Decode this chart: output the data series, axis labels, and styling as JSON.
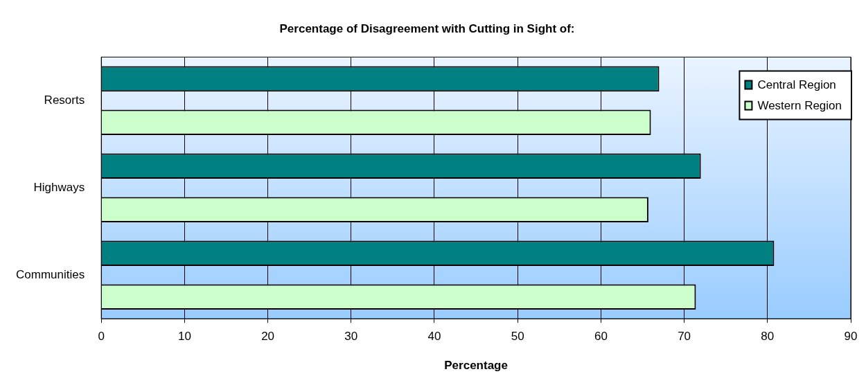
{
  "chart_data": {
    "type": "bar",
    "orientation": "horizontal",
    "title": "Percentage of Disagreement with Cutting in Sight of:",
    "xlabel": "Percentage",
    "categories": [
      "Resorts",
      "Highways",
      "Communities"
    ],
    "series": [
      {
        "name": "Central Region",
        "color": "#008080",
        "values": [
          67,
          72,
          80.8
        ]
      },
      {
        "name": "Western Region",
        "color": "#ccffcc",
        "values": [
          66,
          65.7,
          71.4
        ]
      }
    ],
    "xlim": [
      0,
      90
    ],
    "xticks": [
      0,
      10,
      20,
      30,
      40,
      50,
      60,
      70,
      80,
      90
    ],
    "grid": "x",
    "legend": "top right"
  }
}
